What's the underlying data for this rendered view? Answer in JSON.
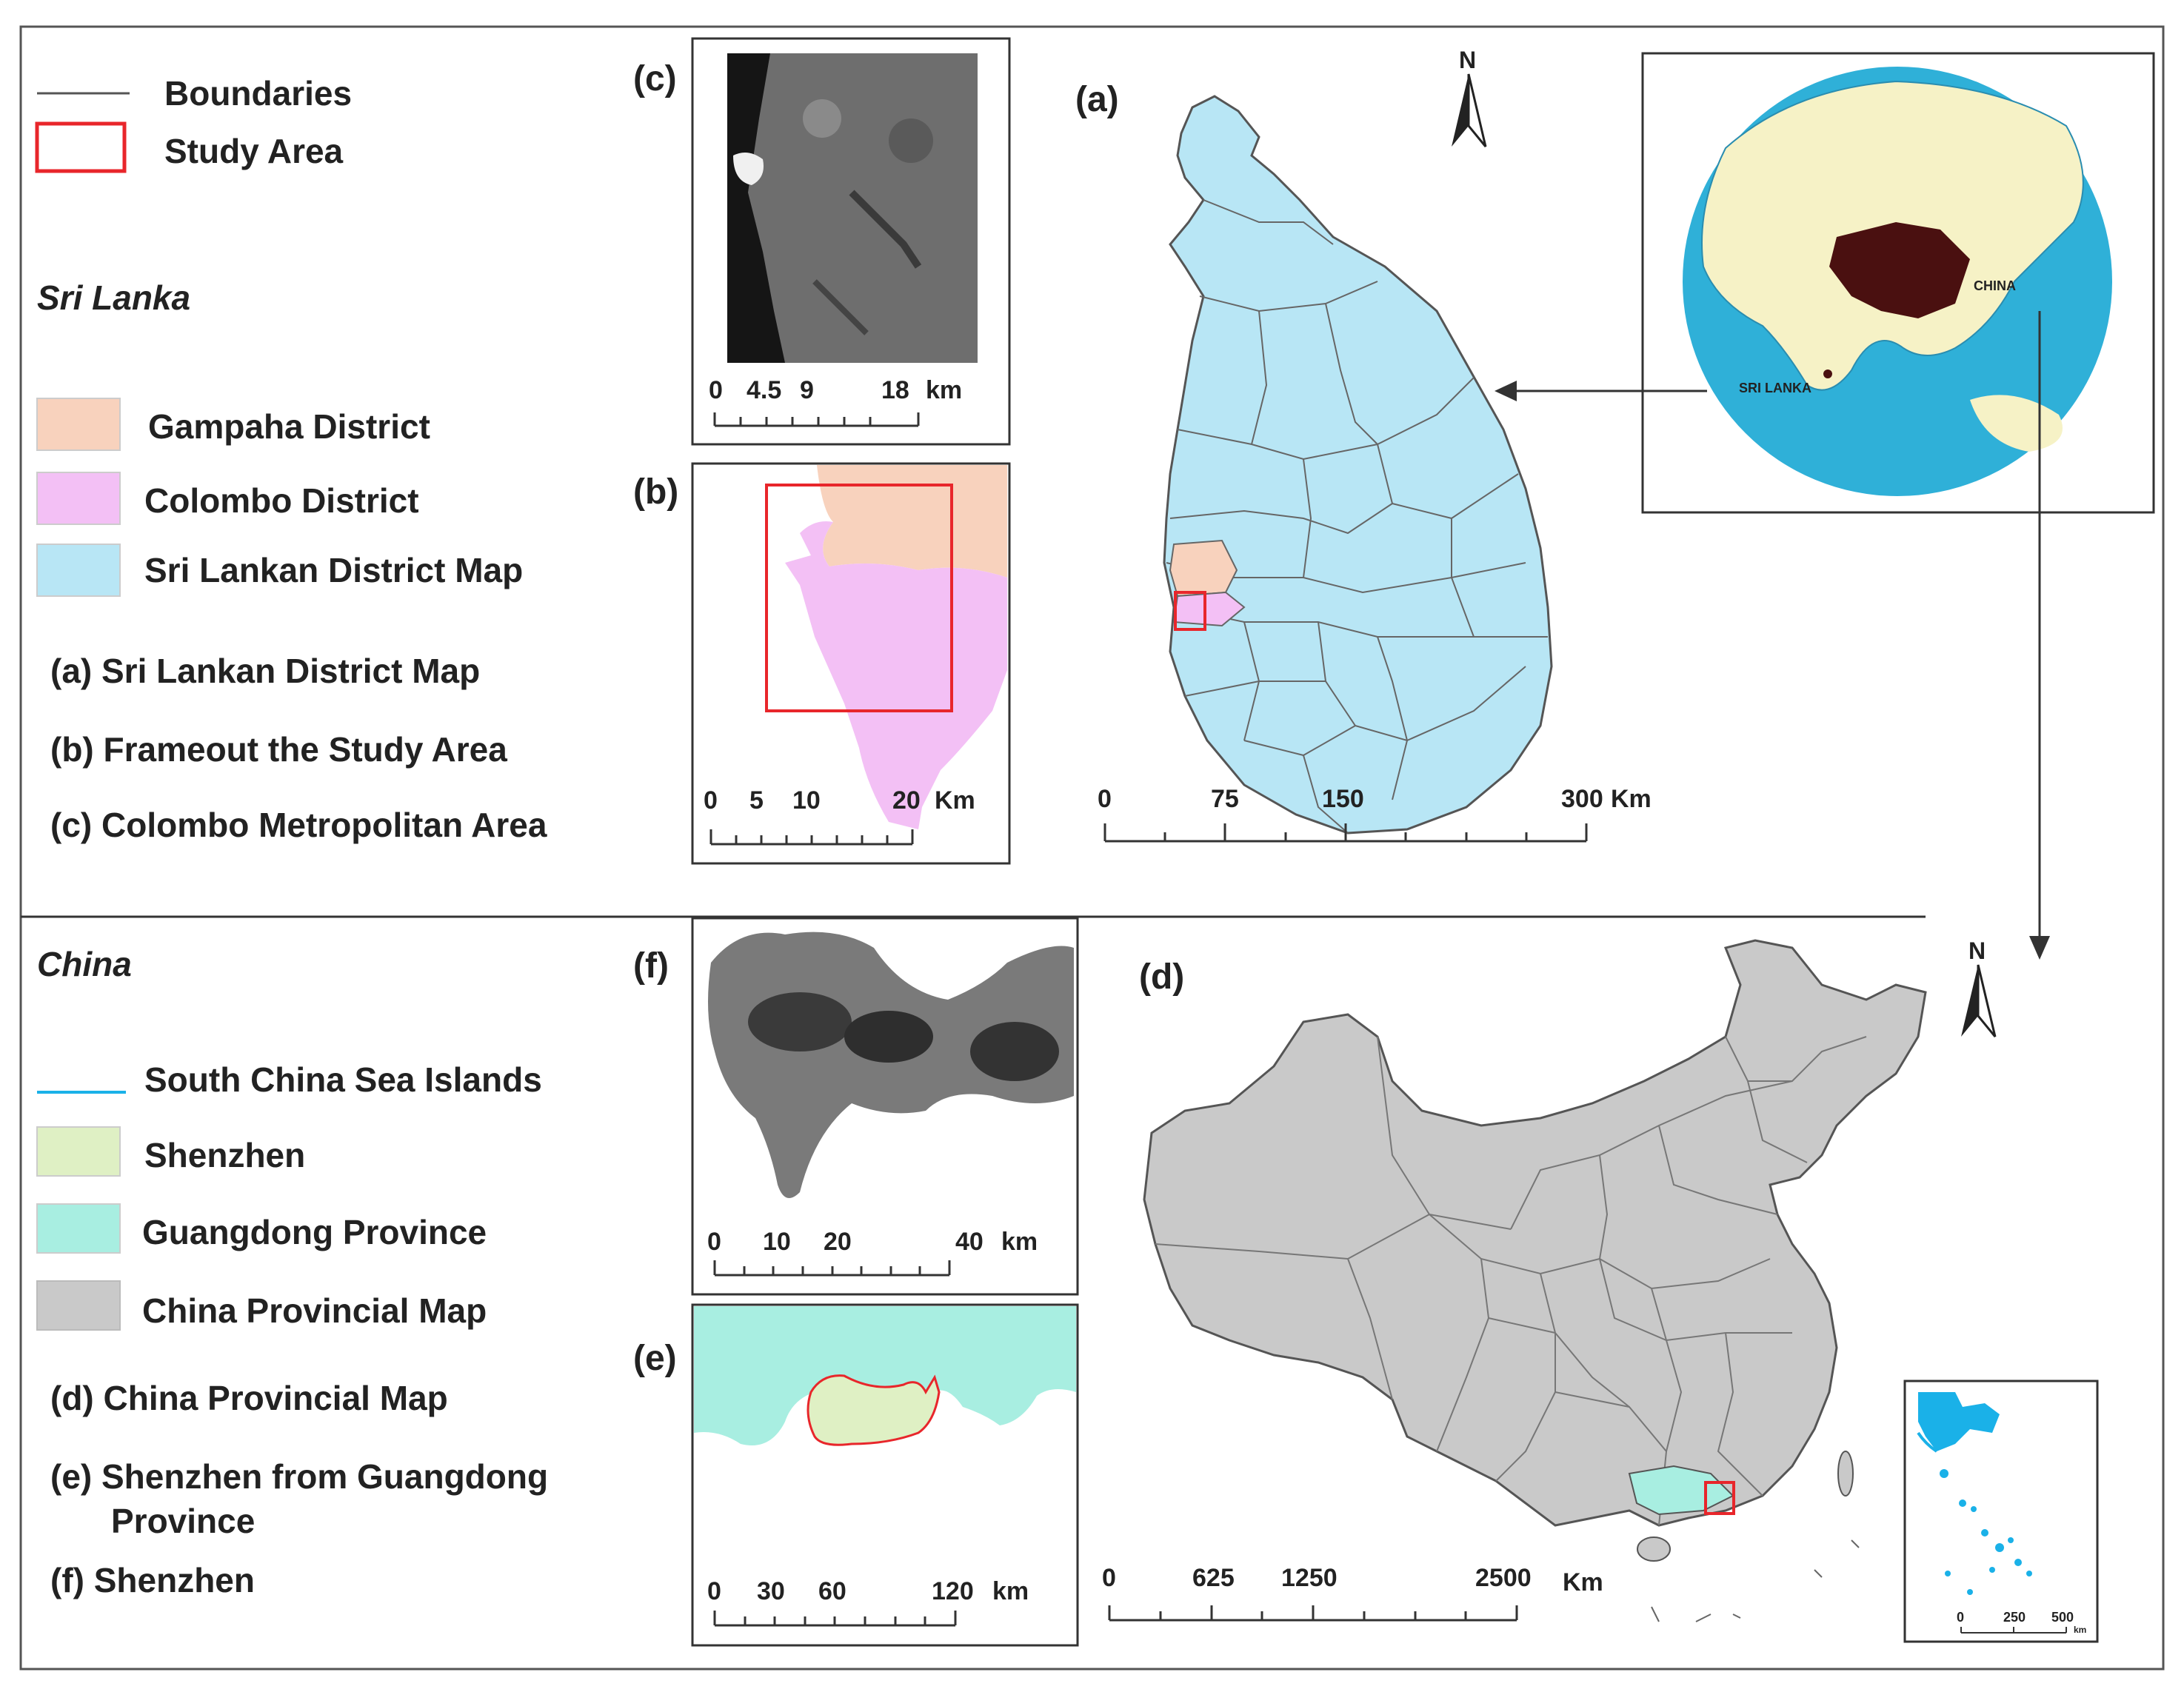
{
  "sri_lanka_legend": {
    "boundaries": "Boundaries",
    "study_area": "Study Area",
    "heading": "Sri Lanka",
    "gampaha": "Gampaha District",
    "colombo": "Colombo District",
    "district_map": "Sri Lankan District Map",
    "item_a": "(a) Sri Lankan District Map",
    "item_b": "(b) Frameout the Study Area",
    "item_c": "(c) Colombo Metropolitan Area"
  },
  "china_legend": {
    "heading": "China",
    "scs_islands": "South China Sea Islands",
    "shenzhen": "Shenzhen",
    "guangdong": "Guangdong Province",
    "provincial_map": "China Provincial Map",
    "item_d": "(d) China Provincial Map",
    "item_e_line1": "(e) Shenzhen from Guangdong",
    "item_e_line2": "Province",
    "item_f": "(f) Shenzhen"
  },
  "panels": {
    "a": "(a)",
    "b": "(b)",
    "c": "(c)",
    "d": "(d)",
    "e": "(e)",
    "f": "(f)"
  },
  "scalebars": {
    "a": {
      "t0": "0",
      "t1": "75",
      "t2": "150",
      "t3": "300",
      "unit": "Km"
    },
    "b": {
      "t0": "0",
      "t1": "5",
      "t2": "10",
      "t3": "20",
      "unit": "Km"
    },
    "c": {
      "t0": "0",
      "t1": "4.5",
      "t2": "9",
      "t3": "18",
      "unit": "km"
    },
    "d": {
      "t0": "0",
      "t1": "625",
      "t2": "1250",
      "t3": "2500",
      "unit": "Km"
    },
    "e": {
      "t0": "0",
      "t1": "30",
      "t2": "60",
      "t3": "120",
      "unit": "km"
    },
    "f": {
      "t0": "0",
      "t1": "10",
      "t2": "20",
      "t3": "40",
      "unit": "km"
    },
    "inset": {
      "t0": "0",
      "t1": "250",
      "t2": "500",
      "unit": "km"
    }
  },
  "globe_labels": {
    "china": "CHINA",
    "sri_lanka": "SRI LANKA"
  },
  "north": "N",
  "colors": {
    "sri_lanka_fill": "#b8e6f5",
    "gampaha_fill": "#f8d2bd",
    "colombo_fill": "#f3c0f5",
    "china_fill": "#c9c9c9",
    "guangdong_fill": "#a8eee1",
    "shenzhen_fill": "#dff0c4",
    "study_area": "#e8262b",
    "scs_islands": "#1ab1e8",
    "globe_ocean": "#2fb0d8",
    "globe_land": "#f6f2c6",
    "china_globe": "#4a1010"
  }
}
